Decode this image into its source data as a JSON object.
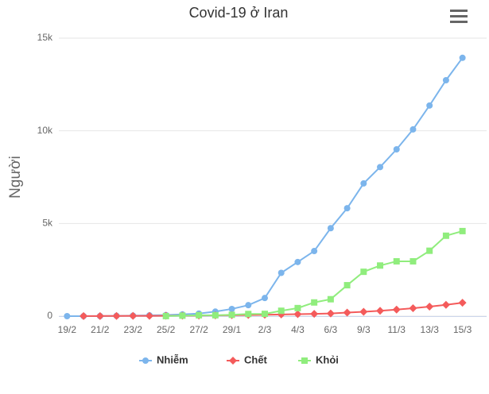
{
  "chart_data": {
    "type": "line",
    "title": "Covid-19 ở Iran",
    "y_label": "Người",
    "categories": [
      "19/2",
      null,
      "21/2",
      null,
      "23/2",
      null,
      "25/2",
      null,
      "27/2",
      null,
      "29/1",
      null,
      "2/3",
      null,
      "4/3",
      null,
      "6/3",
      null,
      "9/3",
      null,
      "11/3",
      null,
      "13/3",
      null,
      "15/3"
    ],
    "series": [
      {
        "name": "Nhiễm",
        "color": "#7cb5ec",
        "marker": "circle",
        "values": [
          0,
          2,
          5,
          18,
          28,
          43,
          61,
          95,
          139,
          245,
          388,
          593,
          978,
          2336,
          2922,
          3513,
          4747,
          5823,
          7161,
          8042,
          9000,
          10075,
          11364,
          12729,
          13938
        ]
      },
      {
        "name": "Chết",
        "color": "#f45b5b",
        "marker": "diamond",
        "values": [
          null,
          4,
          8,
          12,
          15,
          16,
          19,
          26,
          34,
          43,
          54,
          66,
          77,
          92,
          107,
          124,
          145,
          194,
          237,
          291,
          354,
          429,
          514,
          611,
          724
        ]
      },
      {
        "name": "Khỏi",
        "color": "#90ed7d",
        "marker": "square",
        "values": [
          null,
          null,
          null,
          null,
          null,
          null,
          3,
          27,
          49,
          49,
          73,
          116,
          123,
          291,
          435,
          739,
          913,
          1669,
          2394,
          2731,
          2959,
          2959,
          3529,
          4339,
          4590
        ]
      }
    ],
    "ylim": [
      0,
      15000
    ],
    "yticks": [
      0,
      {
        "value": 5000,
        "label": "5k"
      },
      {
        "value": 10000,
        "label": "10k"
      },
      {
        "value": 15000,
        "label": "15k"
      }
    ],
    "grid": true,
    "legend": "bottom"
  }
}
